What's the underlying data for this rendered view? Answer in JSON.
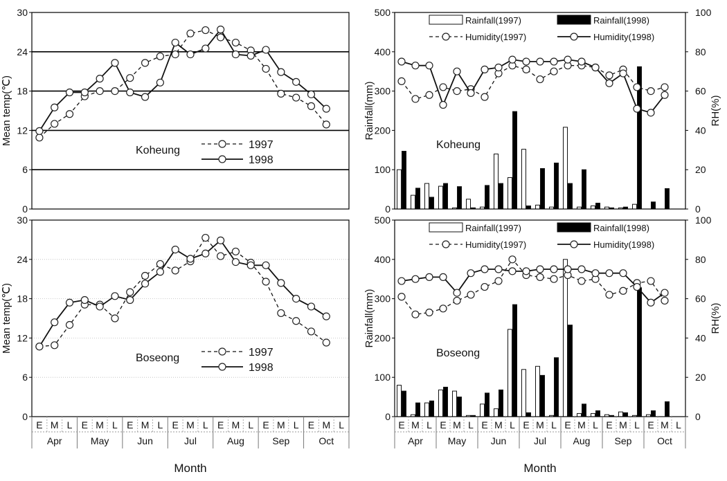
{
  "figure": {
    "x_categories": [
      "E",
      "M",
      "L",
      "E",
      "M",
      "L",
      "E",
      "M",
      "L",
      "E",
      "M",
      "L",
      "E",
      "M",
      "L",
      "E",
      "M",
      "L",
      "E",
      "M",
      "L"
    ],
    "months": [
      "Apr",
      "May",
      "Jun",
      "Jul",
      "Aug",
      "Sep",
      "Oct"
    ],
    "xlabel": "Month"
  },
  "chart_data": [
    {
      "type": "line",
      "station": "Koheung",
      "ylabel": "Mean temp(℃)",
      "ylim": [
        0,
        30
      ],
      "yticks": [
        0,
        6,
        12,
        18,
        24,
        30
      ],
      "grid": "horizontal",
      "legend": {
        "placement": "center",
        "entries": [
          "1997",
          "1998"
        ]
      },
      "series": [
        {
          "name": "1997",
          "style": "dashed",
          "values": [
            10.9,
            13.0,
            14.5,
            17.2,
            18.0,
            18.0,
            20.0,
            22.3,
            23.3,
            23.6,
            26.8,
            27.3,
            26.2,
            25.4,
            24.2,
            21.4,
            17.6,
            17.0,
            15.7,
            12.9
          ]
        },
        {
          "name": "1998",
          "style": "solid",
          "values": [
            11.9,
            15.5,
            17.8,
            17.8,
            19.9,
            22.3,
            17.8,
            17.1,
            19.3,
            25.4,
            23.6,
            24.5,
            27.4,
            23.6,
            23.4,
            24.3,
            20.9,
            19.4,
            17.5,
            15.3
          ]
        }
      ]
    },
    {
      "type": "bar",
      "station": "Koheung",
      "ylabel": "Rainfall(mm)",
      "y2label": "RH(%)",
      "ylim": [
        0,
        500
      ],
      "yticks": [
        0,
        100,
        200,
        300,
        400,
        500
      ],
      "y2lim": [
        0,
        100
      ],
      "y2ticks": [
        0,
        20,
        40,
        60,
        80,
        100
      ],
      "legend": {
        "placement": "top",
        "entries": [
          "Rainfall(1997)",
          "Rainfall(1998)",
          "Humidity(1997)",
          "Humidity(1998)"
        ]
      },
      "series": [
        {
          "name": "Rainfall(1997)",
          "type": "bar",
          "axis": "left",
          "fill": "#ffffff",
          "values": [
            100,
            35,
            65,
            58,
            3,
            25,
            5,
            140,
            80,
            152,
            10,
            5,
            208,
            5,
            8,
            5,
            3,
            12,
            0,
            0,
            0
          ]
        },
        {
          "name": "Rainfall(1998)",
          "type": "bar",
          "axis": "left",
          "fill": "#000000",
          "values": [
            147,
            53,
            30,
            65,
            57,
            3,
            60,
            65,
            248,
            8,
            103,
            117,
            65,
            100,
            15,
            3,
            5,
            362,
            18,
            52,
            0
          ]
        },
        {
          "name": "Humidity(1997)",
          "type": "line",
          "axis": "right",
          "style": "dashed",
          "values": [
            65,
            56,
            58,
            62,
            60,
            61,
            57,
            69,
            73,
            71,
            66,
            70,
            73,
            73,
            72,
            68,
            71,
            62,
            60,
            62
          ]
        },
        {
          "name": "Humidity(1998)",
          "type": "line",
          "axis": "right",
          "style": "solid",
          "values": [
            75,
            73,
            73,
            53,
            70,
            59,
            71,
            72,
            76,
            75,
            75,
            75,
            76,
            75,
            72,
            64,
            69,
            51,
            49,
            58
          ]
        }
      ]
    },
    {
      "type": "line",
      "station": "Boseong",
      "ylabel": "Mean temp(℃)",
      "ylim": [
        0,
        30
      ],
      "yticks": [
        0,
        6,
        12,
        18,
        24,
        30
      ],
      "grid": "horizontal-dotted",
      "legend": {
        "placement": "center",
        "entries": [
          "1997",
          "1998"
        ]
      },
      "series": [
        {
          "name": "1997",
          "style": "dashed",
          "values": [
            10.7,
            10.9,
            14.0,
            17.1,
            17.1,
            15.0,
            19.0,
            21.5,
            23.3,
            22.3,
            23.7,
            27.3,
            24.5,
            25.2,
            23.5,
            20.6,
            15.8,
            14.6,
            13.0,
            11.3
          ]
        },
        {
          "name": "1998",
          "style": "solid",
          "values": [
            10.7,
            14.4,
            17.4,
            17.8,
            16.8,
            18.4,
            17.8,
            20.3,
            22.1,
            25.5,
            24.1,
            24.9,
            26.9,
            23.6,
            23.1,
            23.1,
            20.4,
            18.0,
            16.8,
            15.3
          ]
        }
      ]
    },
    {
      "type": "bar",
      "station": "Boseong",
      "ylabel": "Rainfall(mm)",
      "y2label": "RH(%)",
      "ylim": [
        0,
        500
      ],
      "yticks": [
        0,
        100,
        200,
        300,
        400,
        500
      ],
      "y2lim": [
        0,
        100
      ],
      "y2ticks": [
        0,
        20,
        40,
        60,
        80,
        100
      ],
      "legend": {
        "placement": "top",
        "entries": [
          "Rainfall(1997)",
          "Rainfall(1998)",
          "Humidity(1997)",
          "Humidity(1998)"
        ]
      },
      "series": [
        {
          "name": "Rainfall(1997)",
          "type": "bar",
          "axis": "left",
          "fill": "#ffffff",
          "values": [
            80,
            5,
            35,
            68,
            65,
            3,
            32,
            20,
            222,
            120,
            128,
            3,
            400,
            8,
            8,
            5,
            12,
            3,
            5,
            0,
            0
          ]
        },
        {
          "name": "Rainfall(1998)",
          "type": "bar",
          "axis": "left",
          "fill": "#000000",
          "values": [
            65,
            35,
            40,
            75,
            50,
            3,
            60,
            68,
            285,
            10,
            105,
            150,
            233,
            32,
            15,
            3,
            10,
            328,
            15,
            38,
            0
          ]
        },
        {
          "name": "Humidity(1997)",
          "type": "line",
          "axis": "right",
          "style": "dashed",
          "values": [
            61,
            52,
            53,
            55,
            59,
            62,
            66,
            69,
            80,
            72,
            71,
            70,
            72,
            69,
            70,
            62,
            64,
            68,
            69,
            59
          ]
        },
        {
          "name": "Humidity(1998)",
          "type": "line",
          "axis": "right",
          "style": "solid",
          "values": [
            69,
            70,
            71,
            71,
            63,
            73,
            75,
            75,
            74,
            74,
            75,
            75,
            75,
            75,
            73,
            73,
            73,
            66,
            58,
            63
          ]
        }
      ]
    }
  ]
}
